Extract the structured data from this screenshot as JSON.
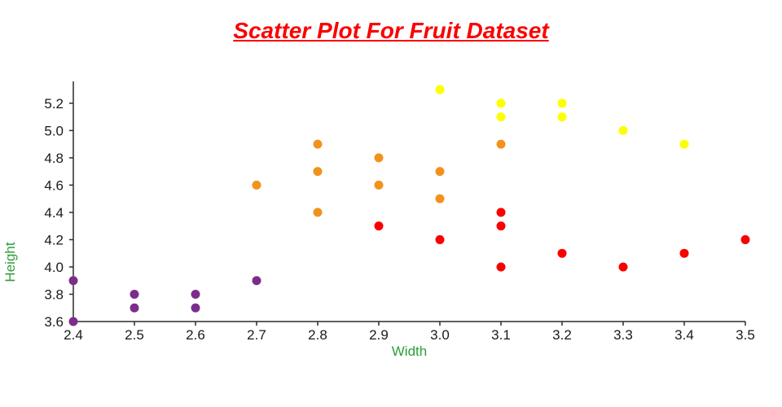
{
  "chart_data": {
    "type": "scatter",
    "title": "Scatter Plot For Fruit Dataset",
    "xlabel": "Width",
    "ylabel": "Height",
    "xlim": [
      2.4,
      3.5
    ],
    "ylim": [
      3.6,
      5.36
    ],
    "x_ticks": [
      "2.4",
      "2.5",
      "2.6",
      "2.7",
      "2.8",
      "2.9",
      "3.0",
      "3.1",
      "3.2",
      "3.3",
      "3.4",
      "3.5"
    ],
    "y_ticks": [
      "3.6",
      "3.8",
      "4.0",
      "4.2",
      "4.4",
      "4.6",
      "4.8",
      "5.0",
      "5.2"
    ],
    "grid": false,
    "legend": "none",
    "series": [
      {
        "name": "purple-points",
        "color": "#7b2d8b",
        "points": [
          [
            2.4,
            3.9
          ],
          [
            2.4,
            3.6
          ],
          [
            2.5,
            3.8
          ],
          [
            2.5,
            3.7
          ],
          [
            2.6,
            3.8
          ],
          [
            2.6,
            3.7
          ],
          [
            2.7,
            3.9
          ]
        ]
      },
      {
        "name": "orange-points",
        "color": "#f2921d",
        "points": [
          [
            2.7,
            4.6
          ],
          [
            2.8,
            4.9
          ],
          [
            2.8,
            4.7
          ],
          [
            2.8,
            4.4
          ],
          [
            2.9,
            4.8
          ],
          [
            2.9,
            4.6
          ],
          [
            3.0,
            4.7
          ],
          [
            3.0,
            4.5
          ],
          [
            3.1,
            4.9
          ]
        ]
      },
      {
        "name": "red-points",
        "color": "#fb0000",
        "points": [
          [
            2.9,
            4.3
          ],
          [
            3.0,
            4.2
          ],
          [
            3.1,
            4.4
          ],
          [
            3.1,
            4.3
          ],
          [
            3.1,
            4.0
          ],
          [
            3.2,
            4.1
          ],
          [
            3.3,
            4.0
          ],
          [
            3.4,
            4.1
          ],
          [
            3.5,
            4.2
          ]
        ]
      },
      {
        "name": "yellow-points",
        "color": "#fcff00",
        "points": [
          [
            3.0,
            5.3
          ],
          [
            3.1,
            5.2
          ],
          [
            3.1,
            5.1
          ],
          [
            3.2,
            5.2
          ],
          [
            3.2,
            5.1
          ],
          [
            3.3,
            5.0
          ],
          [
            3.4,
            4.9
          ]
        ]
      }
    ]
  },
  "colors": {
    "title": "#fb0000",
    "axis_label": "#2e9e38",
    "axis_line": "#2b2b2b",
    "tick_text": "#1a1a1a"
  }
}
